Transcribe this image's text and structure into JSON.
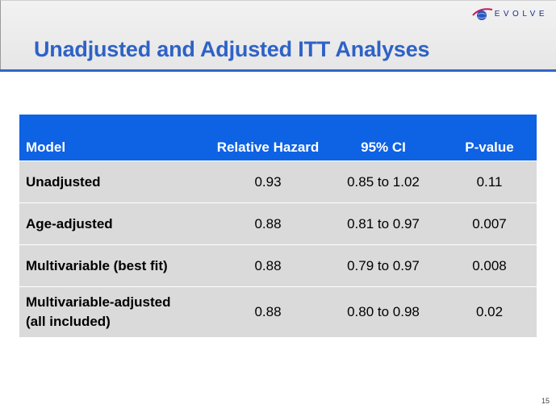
{
  "logo": {
    "text": "EVOLVE",
    "icon": "globe-swoosh-logo"
  },
  "title": "Unadjusted and Adjusted ITT Analyses",
  "table": {
    "headers": [
      "Model",
      "Relative Hazard",
      "95% CI",
      "P-value"
    ],
    "rows": [
      {
        "model": "Unadjusted",
        "hazard": "0.93",
        "ci": "0.85 to 1.02",
        "p": "0.11"
      },
      {
        "model": "Age-adjusted",
        "hazard": "0.88",
        "ci": "0.81 to 0.97",
        "p": "0.007"
      },
      {
        "model": "Multivariable (best fit)",
        "hazard": "0.88",
        "ci": "0.79 to 0.97",
        "p": "0.008"
      },
      {
        "model_line1": "Multivariable-adjusted",
        "model_line2": "(all included)",
        "hazard": "0.88",
        "ci": "0.80 to 0.98",
        "p": "0.02"
      }
    ]
  },
  "page_number": "15",
  "colors": {
    "title": "#2e62c6",
    "header_bg": "#0e62e4",
    "row_bg": "#dadada",
    "rule": "#2e67c8"
  }
}
